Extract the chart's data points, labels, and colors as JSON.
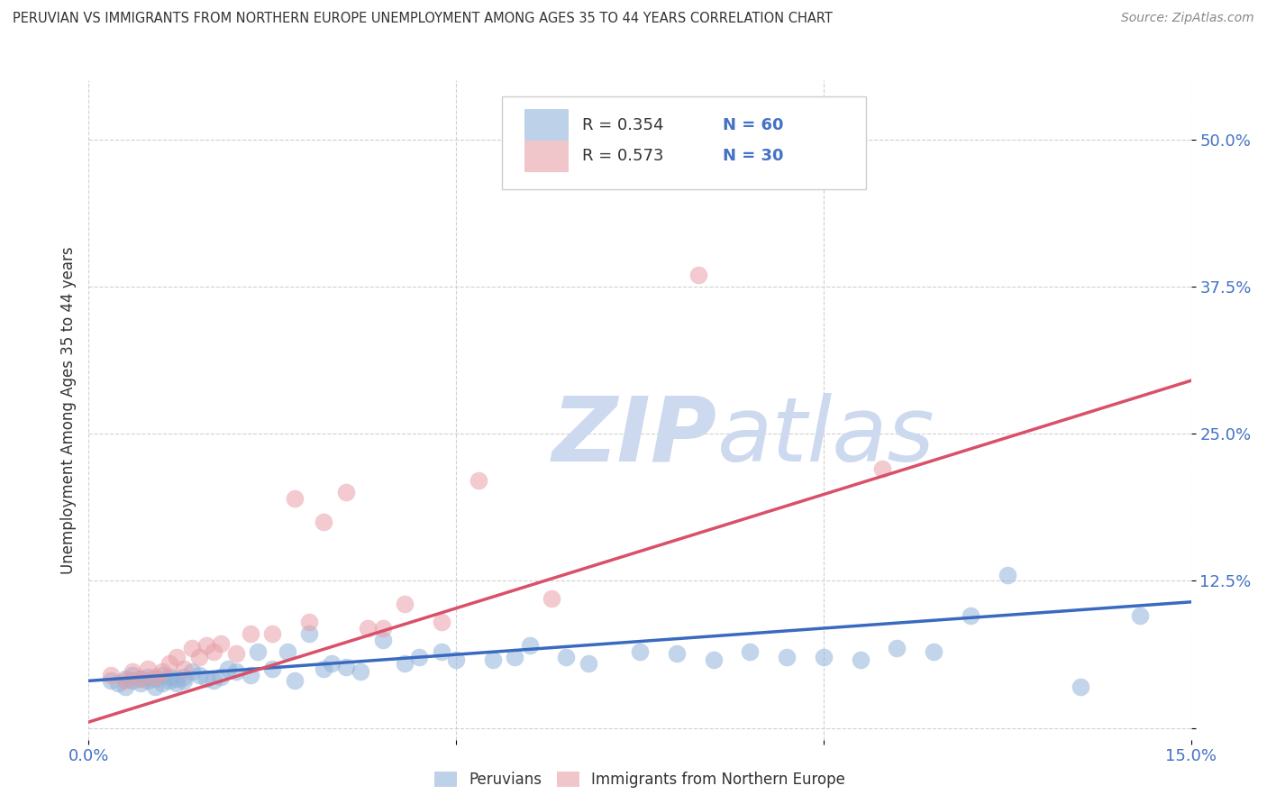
{
  "title": "PERUVIAN VS IMMIGRANTS FROM NORTHERN EUROPE UNEMPLOYMENT AMONG AGES 35 TO 44 YEARS CORRELATION CHART",
  "source": "Source: ZipAtlas.com",
  "ylabel": "Unemployment Among Ages 35 to 44 years",
  "xlim": [
    0.0,
    0.15
  ],
  "ylim": [
    -0.01,
    0.55
  ],
  "x_ticks": [
    0.0,
    0.05,
    0.1,
    0.15
  ],
  "x_tick_labels": [
    "0.0%",
    "",
    "",
    "15.0%"
  ],
  "y_ticks": [
    0.0,
    0.125,
    0.25,
    0.375,
    0.5
  ],
  "y_tick_labels": [
    "",
    "12.5%",
    "25.0%",
    "37.5%",
    "50.0%"
  ],
  "blue_color": "#92b4d9",
  "pink_color": "#e8a0a8",
  "blue_line_color": "#3a6abf",
  "pink_line_color": "#d9506a",
  "legend_R_blue": "0.354",
  "legend_N_blue": "60",
  "legend_R_pink": "0.573",
  "legend_N_pink": "30",
  "blue_scatter_x": [
    0.003,
    0.004,
    0.005,
    0.005,
    0.006,
    0.006,
    0.007,
    0.007,
    0.008,
    0.008,
    0.009,
    0.009,
    0.01,
    0.01,
    0.011,
    0.011,
    0.012,
    0.012,
    0.013,
    0.013,
    0.014,
    0.015,
    0.016,
    0.017,
    0.018,
    0.019,
    0.02,
    0.022,
    0.023,
    0.025,
    0.027,
    0.028,
    0.03,
    0.032,
    0.033,
    0.035,
    0.037,
    0.04,
    0.043,
    0.045,
    0.048,
    0.05,
    0.055,
    0.058,
    0.06,
    0.065,
    0.068,
    0.075,
    0.08,
    0.085,
    0.09,
    0.095,
    0.1,
    0.105,
    0.11,
    0.115,
    0.12,
    0.125,
    0.135,
    0.143
  ],
  "blue_scatter_y": [
    0.04,
    0.038,
    0.035,
    0.042,
    0.04,
    0.045,
    0.038,
    0.042,
    0.04,
    0.043,
    0.035,
    0.042,
    0.045,
    0.038,
    0.04,
    0.043,
    0.038,
    0.042,
    0.04,
    0.043,
    0.048,
    0.045,
    0.042,
    0.04,
    0.043,
    0.05,
    0.048,
    0.045,
    0.065,
    0.05,
    0.065,
    0.04,
    0.08,
    0.05,
    0.055,
    0.052,
    0.048,
    0.075,
    0.055,
    0.06,
    0.065,
    0.058,
    0.058,
    0.06,
    0.07,
    0.06,
    0.055,
    0.065,
    0.063,
    0.058,
    0.065,
    0.06,
    0.06,
    0.058,
    0.068,
    0.065,
    0.095,
    0.13,
    0.035,
    0.095
  ],
  "pink_scatter_x": [
    0.003,
    0.005,
    0.006,
    0.007,
    0.008,
    0.009,
    0.01,
    0.011,
    0.012,
    0.013,
    0.014,
    0.015,
    0.016,
    0.017,
    0.018,
    0.02,
    0.022,
    0.025,
    0.028,
    0.03,
    0.032,
    0.035,
    0.038,
    0.04,
    0.043,
    0.048,
    0.053,
    0.063,
    0.083,
    0.108
  ],
  "pink_scatter_y": [
    0.045,
    0.04,
    0.048,
    0.042,
    0.05,
    0.043,
    0.048,
    0.055,
    0.06,
    0.05,
    0.068,
    0.06,
    0.07,
    0.065,
    0.072,
    0.063,
    0.08,
    0.08,
    0.195,
    0.09,
    0.175,
    0.2,
    0.085,
    0.085,
    0.105,
    0.09,
    0.21,
    0.11,
    0.385,
    0.22
  ],
  "blue_line_x": [
    0.0,
    0.15
  ],
  "blue_line_y": [
    0.04,
    0.107
  ],
  "pink_line_x": [
    0.0,
    0.15
  ],
  "pink_line_y": [
    0.005,
    0.295
  ],
  "background_color": "#ffffff",
  "grid_color": "#cccccc",
  "title_color": "#333333",
  "axis_color": "#4472c4",
  "label_color": "#333333"
}
